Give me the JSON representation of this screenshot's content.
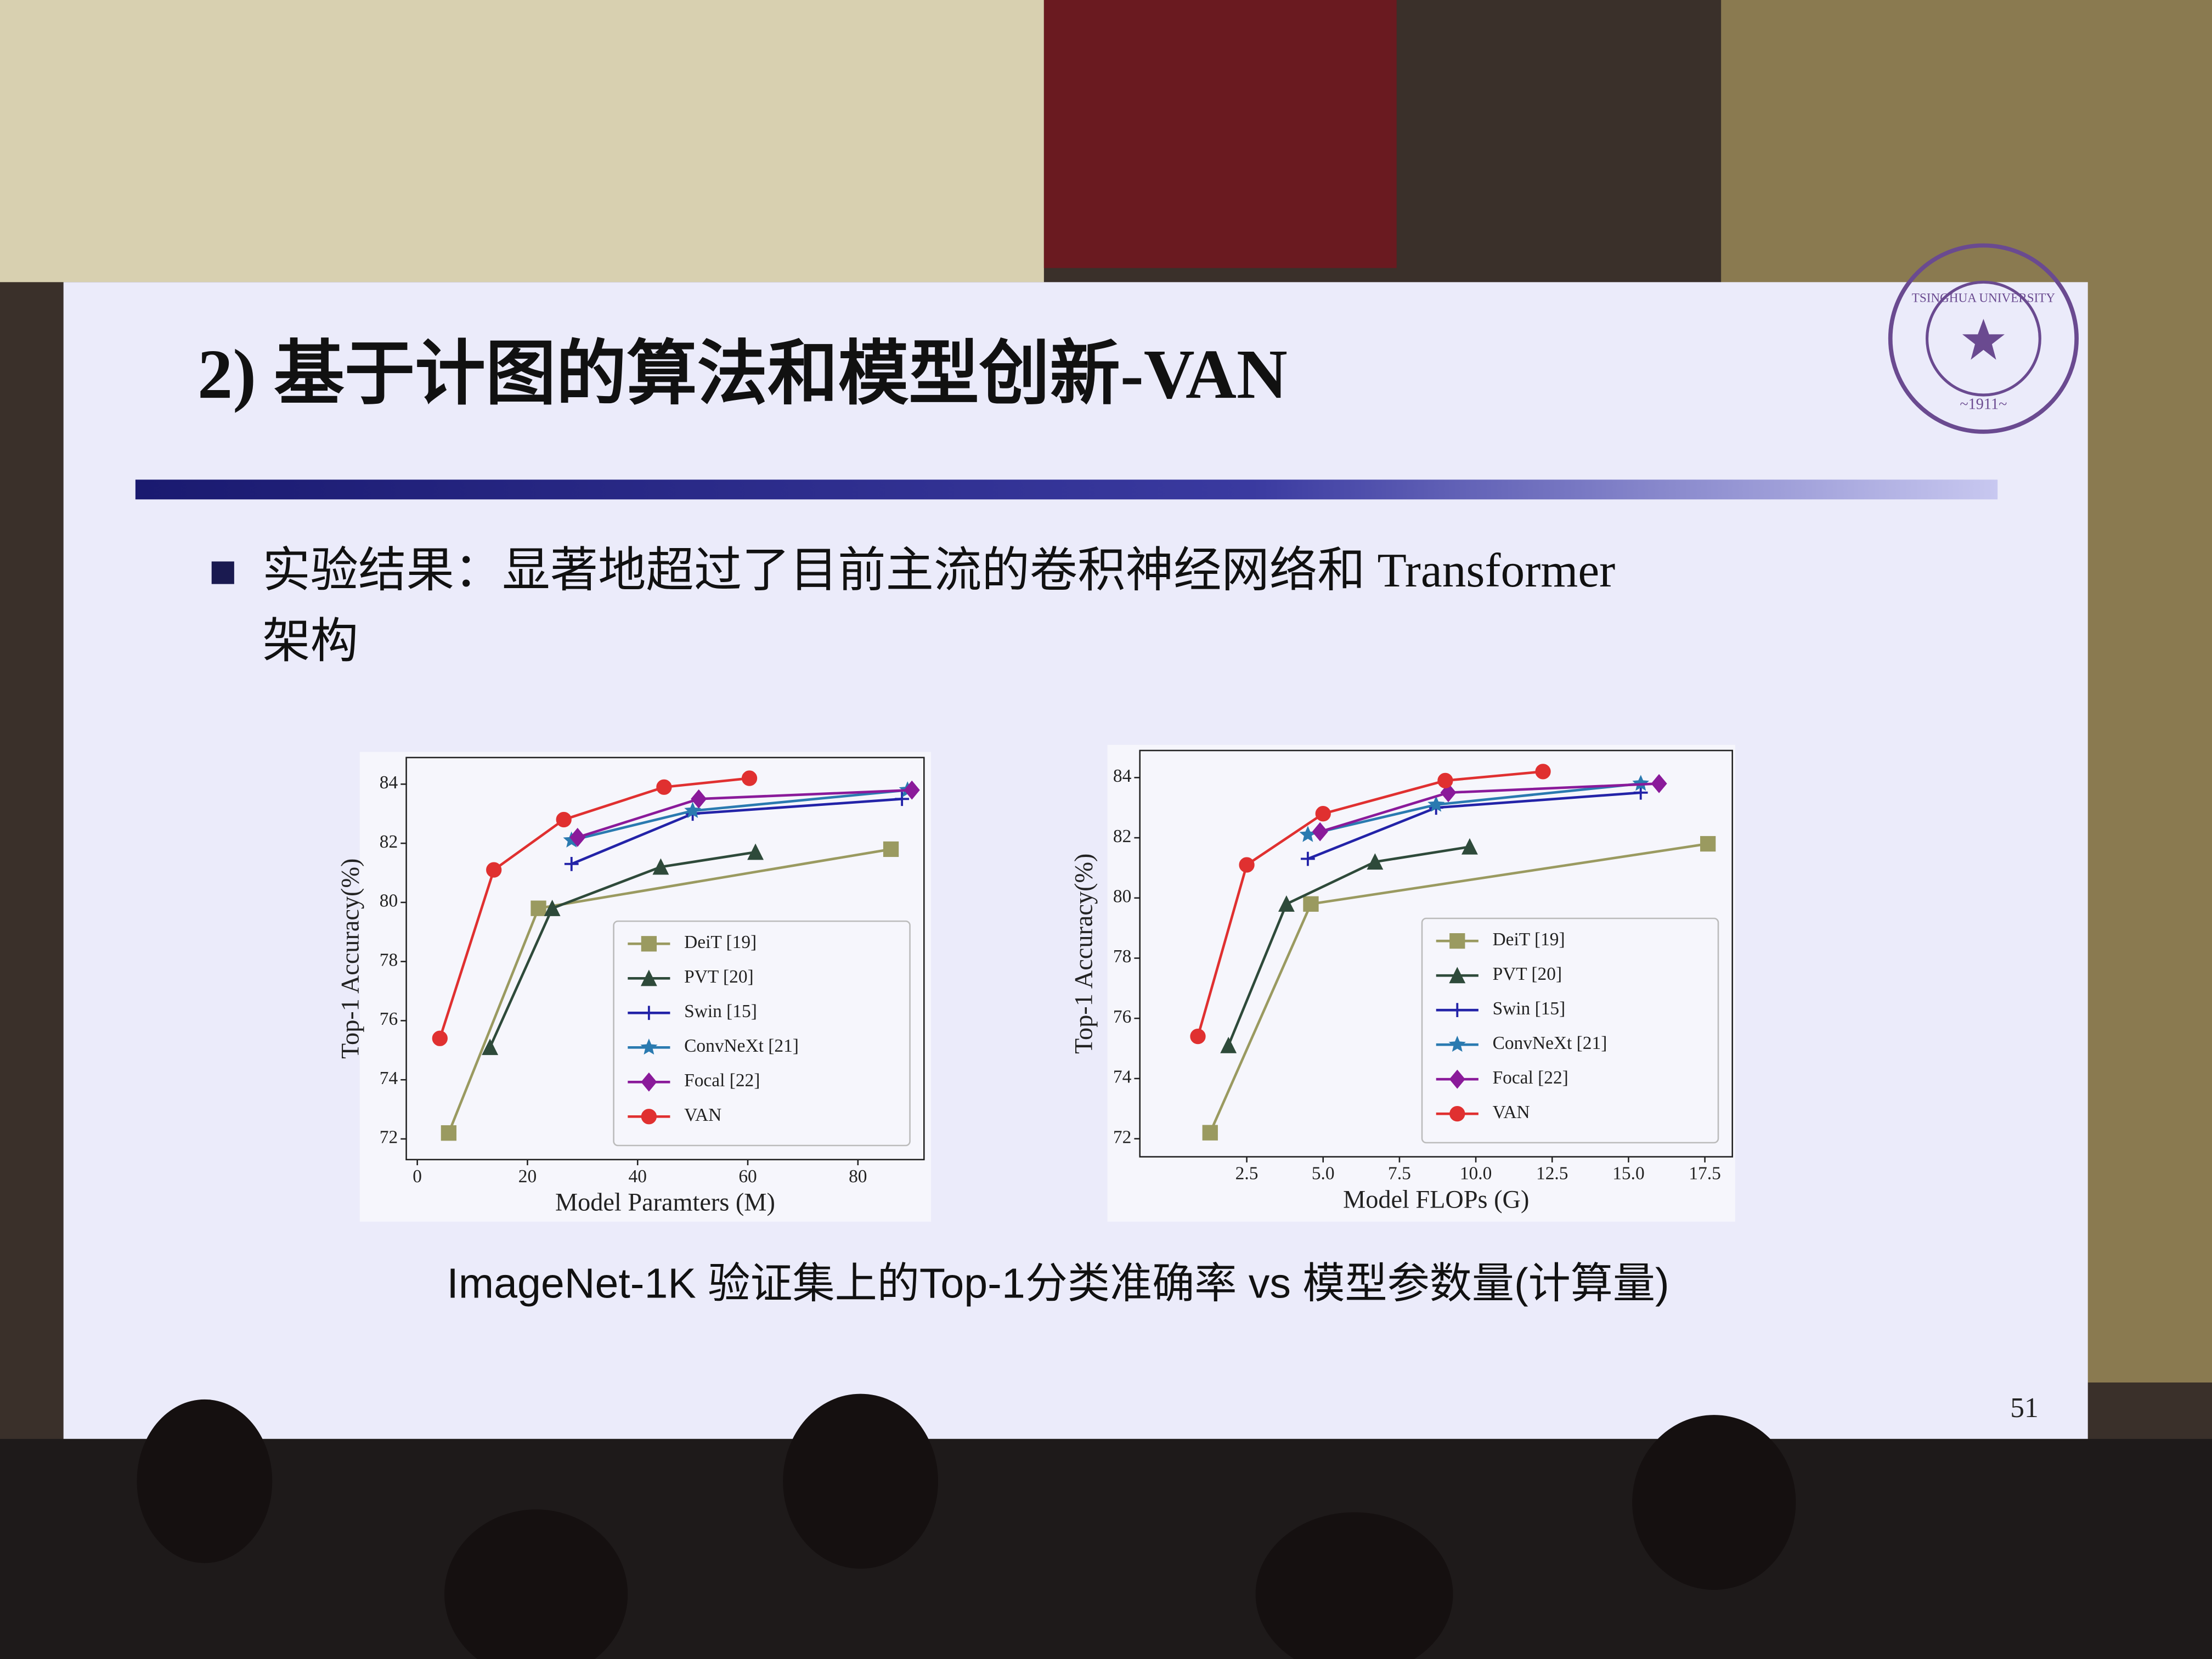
{
  "slide": {
    "title": "2) 基于计图的算法和模型创新-VAN",
    "bullet": [
      "实验结果：显著地超过了目前主流的卷积神经网络和 Transformer",
      "架构"
    ],
    "caption": "ImageNet-1K 验证集上的Top-1分类准确率 vs 模型参数量(计算量)",
    "page_number": "51",
    "logo": {
      "text": "TSINGHUA UNIVERSITY",
      "year": "~1911~"
    }
  },
  "chart_data": [
    {
      "type": "line",
      "x_label": "Model Paramters (M)",
      "y_label": "Top-1 Accuracy(%)",
      "xlim": [
        -2,
        92
      ],
      "ylim": [
        71.3,
        84.9
      ],
      "xticks": [
        0,
        20,
        40,
        60,
        80
      ],
      "yticks": [
        72,
        74,
        76,
        78,
        80,
        82,
        84
      ],
      "legend": "lower right",
      "series": [
        {
          "name": "DeiT [19]",
          "color": "#9a9a60",
          "marker": "square",
          "x": [
            5.7,
            22,
            86
          ],
          "values": [
            72.2,
            79.8,
            81.8
          ]
        },
        {
          "name": "PVT [20]",
          "color": "#2e4a3a",
          "marker": "triangle",
          "x": [
            13.2,
            24.5,
            44.2,
            61.4
          ],
          "values": [
            75.1,
            79.8,
            81.2,
            81.7
          ]
        },
        {
          "name": "Swin [15]",
          "color": "#2323a8",
          "marker": "plus",
          "x": [
            28,
            50,
            88
          ],
          "values": [
            81.3,
            83.0,
            83.5
          ]
        },
        {
          "name": "ConvNeXt [21]",
          "color": "#2a7ab0",
          "marker": "star",
          "x": [
            28,
            50,
            89
          ],
          "values": [
            82.1,
            83.1,
            83.8
          ]
        },
        {
          "name": "Focal [22]",
          "color": "#8a1a9a",
          "marker": "diamond",
          "x": [
            29.1,
            51.1,
            89.8
          ],
          "values": [
            82.2,
            83.5,
            83.8
          ]
        },
        {
          "name": "VAN",
          "color": "#e03030",
          "marker": "circle",
          "x": [
            4.1,
            13.9,
            26.6,
            44.8,
            60.3
          ],
          "values": [
            75.4,
            81.1,
            82.8,
            83.9,
            84.2
          ]
        }
      ]
    },
    {
      "type": "line",
      "x_label": "Model FLOPs (G)",
      "y_label": "Top-1 Accuracy(%)",
      "xlim": [
        -1.0,
        18.4
      ],
      "ylim": [
        71.4,
        84.9
      ],
      "xticks": [
        2.5,
        {
          "value": 5,
          "label": "5.0"
        },
        7.5,
        {
          "value": 10,
          "label": "10.0"
        },
        12.5,
        {
          "value": 15,
          "label": "15.0"
        },
        17.5
      ],
      "yticks": [
        72,
        74,
        76,
        78,
        80,
        82,
        84
      ],
      "legend": "lower right",
      "series": [
        {
          "name": "DeiT [19]",
          "color": "#9a9a60",
          "marker": "square",
          "x": [
            1.3,
            4.6,
            17.6
          ],
          "values": [
            72.2,
            79.8,
            81.8
          ]
        },
        {
          "name": "PVT [20]",
          "color": "#2e4a3a",
          "marker": "triangle",
          "x": [
            1.9,
            3.8,
            6.7,
            9.8
          ],
          "values": [
            75.1,
            79.8,
            81.2,
            81.7
          ]
        },
        {
          "name": "Swin [15]",
          "color": "#2323a8",
          "marker": "plus",
          "x": [
            4.5,
            8.7,
            15.4
          ],
          "values": [
            81.3,
            83.0,
            83.5
          ]
        },
        {
          "name": "ConvNeXt [21]",
          "color": "#2a7ab0",
          "marker": "star",
          "x": [
            4.5,
            8.7,
            15.4
          ],
          "values": [
            82.1,
            83.1,
            83.8
          ]
        },
        {
          "name": "Focal [22]",
          "color": "#8a1a9a",
          "marker": "diamond",
          "x": [
            4.9,
            9.1,
            16.0
          ],
          "values": [
            82.2,
            83.5,
            83.8
          ]
        },
        {
          "name": "VAN",
          "color": "#e03030",
          "marker": "circle",
          "x": [
            0.9,
            2.5,
            5.0,
            9.0,
            12.2
          ],
          "values": [
            75.4,
            81.1,
            82.8,
            83.9,
            84.2
          ]
        }
      ]
    }
  ]
}
